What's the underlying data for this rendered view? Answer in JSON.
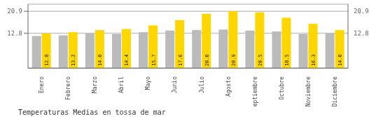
{
  "chart_data": {
    "type": "bar",
    "title": "Temperaturas Medias en tossa de mar",
    "categories": [
      "Enero",
      "Febrero",
      "Marzo",
      "Abril",
      "Mayo",
      "Junio",
      "Julio",
      "Agosto",
      "Septiembre",
      "Octubre",
      "Noviembre",
      "Diciembre"
    ],
    "series": [
      {
        "color": "#BBBBBB",
        "values": [
          11.8,
          12.1,
          12.8,
          12.5,
          13.2,
          13.8,
          14.0,
          14.2,
          13.8,
          13.5,
          12.5,
          12.8
        ]
      },
      {
        "color": "#FFD700",
        "values": [
          12.8,
          13.2,
          14.0,
          14.4,
          15.7,
          17.6,
          20.0,
          20.9,
          20.5,
          18.5,
          16.3,
          14.0
        ],
        "value_labels": [
          "12.8",
          "13.2",
          "14.0",
          "14.4",
          "15.7",
          "17.6",
          "20.0",
          "20.9",
          "20.5",
          "18.5",
          "16.3",
          "14.0"
        ],
        "data_labels": true
      }
    ],
    "ylim": [
      0,
      23.5
    ],
    "yticks": [
      12.8,
      20.9
    ],
    "grid": true
  }
}
